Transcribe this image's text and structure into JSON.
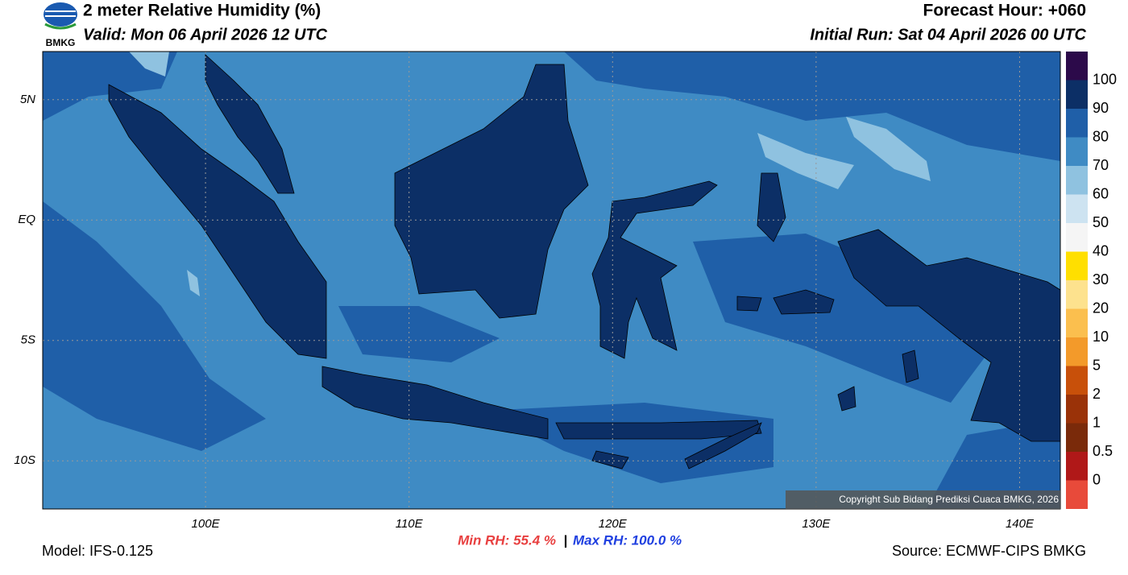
{
  "header": {
    "title": "2 meter Relative Humidity (%)",
    "valid": "Valid: Mon 06 April 2026 12 UTC",
    "forecast_hour": "Forecast Hour: +060",
    "initial_run": "Initial Run: Sat 04 April 2026 00 UTC",
    "logo_text": "BMKG"
  },
  "map": {
    "xlim": [
      92,
      142
    ],
    "ylim": [
      -12,
      7
    ],
    "xticks": [
      {
        "value": 100,
        "label": "100E"
      },
      {
        "value": 110,
        "label": "110E"
      },
      {
        "value": 120,
        "label": "120E"
      },
      {
        "value": 130,
        "label": "130E"
      },
      {
        "value": 140,
        "label": "140E"
      }
    ],
    "yticks": [
      {
        "value": 5,
        "label": "5N"
      },
      {
        "value": 0,
        "label": "EQ"
      },
      {
        "value": -5,
        "label": "5S"
      },
      {
        "value": -10,
        "label": "10S"
      }
    ],
    "grid": true,
    "copyright": "Copyright Sub Bidang Prediksi Cuaca BMKG, 2026"
  },
  "colorbar": {
    "levels": [
      0,
      0.5,
      1,
      2,
      5,
      10,
      20,
      30,
      40,
      50,
      60,
      70,
      80,
      90,
      100
    ],
    "colors": [
      "#e84a3a",
      "#b01818",
      "#7a2a0a",
      "#9a3208",
      "#c8500a",
      "#f39a2a",
      "#fbbf4e",
      "#fde28e",
      "#ffdf00",
      "#f5f5f5",
      "#cde3f1",
      "#8fc2e0",
      "#3f8bc4",
      "#1f5fa8",
      "#0c2f66",
      "#2c0a4a"
    ]
  },
  "footer": {
    "min_rh": "Min RH:  55.4 %",
    "separator": "|",
    "max_rh": "Max RH: 100.0 %",
    "model": "Model: IFS-0.125",
    "source": "Source: ECMWF-CIPS BMKG"
  }
}
